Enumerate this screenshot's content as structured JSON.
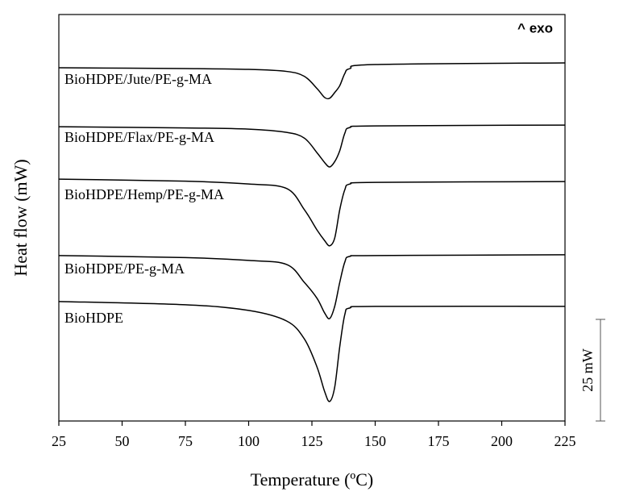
{
  "chart_data": {
    "type": "line",
    "x_label": "Temperature (ºC)",
    "y_label": "Heat flow (mW)",
    "annotation": "^ exo",
    "scale_bar": {
      "value": 25,
      "label": "25 mW"
    },
    "x": [
      25,
      75,
      100,
      115,
      122,
      127,
      130,
      132,
      134,
      136,
      138,
      140,
      150,
      225
    ],
    "series": [
      {
        "name": "BioHDPE/Jute/PE-g-MA",
        "color": "#000000",
        "values": [
          86.9,
          86.7,
          86.5,
          86.0,
          84.8,
          81.8,
          79.6,
          79.4,
          80.8,
          82.5,
          85.5,
          86.7,
          87.7,
          88.1
        ]
      },
      {
        "name": "BioHDPE/Flax/PE-g-MA",
        "color": "#000000",
        "values": [
          72.4,
          72.1,
          71.8,
          71.0,
          69.6,
          66.0,
          63.6,
          62.5,
          63.8,
          66.5,
          70.8,
          72.2,
          72.6,
          72.8
        ]
      },
      {
        "name": "BioHDPE/Hemp/PE-g-MA",
        "color": "#000000",
        "values": [
          59.5,
          59.0,
          58.3,
          57.2,
          52.0,
          47.0,
          44.4,
          43.1,
          45.0,
          52.0,
          56.9,
          58.3,
          58.7,
          58.9
        ]
      },
      {
        "name": "BioHDPE/PE-g-MA",
        "color": "#000000",
        "values": [
          40.7,
          40.2,
          39.5,
          38.5,
          34.1,
          30.2,
          26.6,
          25.2,
          28.2,
          34.1,
          39.1,
          40.5,
          40.7,
          40.9
        ]
      },
      {
        "name": "BioHDPE",
        "color": "#000000",
        "values": [
          29.4,
          28.6,
          27.2,
          24.6,
          20.2,
          13.3,
          7.3,
          4.8,
          8.3,
          18.3,
          26.2,
          27.8,
          28.2,
          28.2
        ]
      }
    ],
    "xlim": [
      25,
      225
    ],
    "xticks": [
      25,
      50,
      75,
      100,
      125,
      150,
      175,
      200,
      225
    ],
    "ylim": [
      0,
      100
    ]
  }
}
